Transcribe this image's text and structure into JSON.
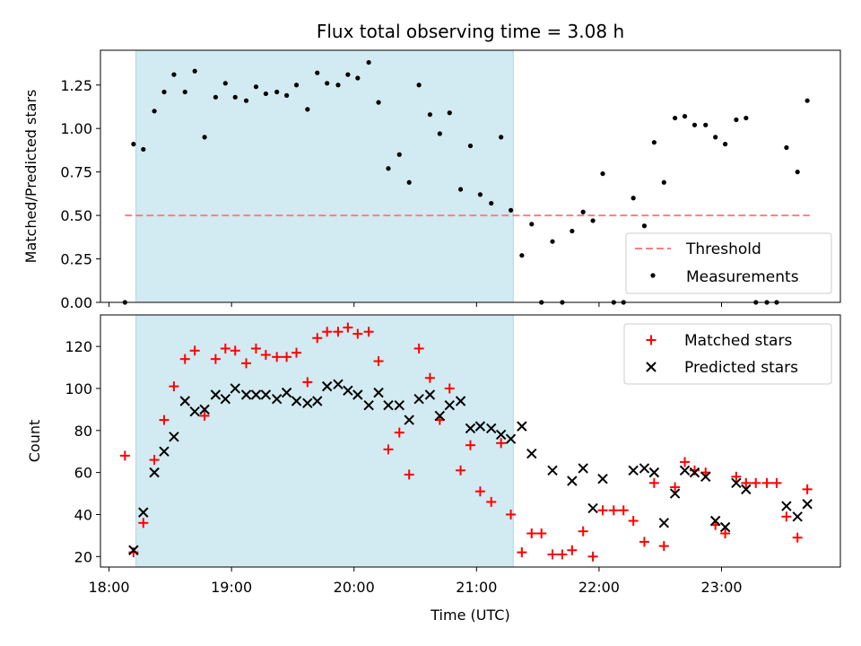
{
  "colors": {
    "shade": "#add8e6",
    "threshold": "#ff7f7f",
    "measurement": "#000000",
    "matched": "#ff0000",
    "predicted": "#000000"
  },
  "chart_data": [
    {
      "type": "scatter",
      "title": "Flux total observing time = 3.08 h",
      "xlabel": "",
      "ylabel": "Matched/Predicted stars",
      "ylim": [
        0.0,
        1.45
      ],
      "yticks": [
        0.0,
        0.25,
        0.5,
        0.75,
        1.0,
        1.25
      ],
      "ytick_labels": [
        "0.00",
        "0.25",
        "0.50",
        "0.75",
        "1.00",
        "1.25"
      ],
      "xlim_hours": [
        17.93,
        23.97
      ],
      "shaded_interval_hours": [
        18.22,
        21.3
      ],
      "threshold_value": 0.5,
      "threshold_span_hours": [
        18.13,
        23.72
      ],
      "legend": {
        "placement": "lower-right",
        "entries": [
          "Threshold",
          "Measurements"
        ]
      },
      "series": [
        {
          "name": "Measurements",
          "marker": "dot",
          "x_hours": [
            18.13,
            18.2,
            18.28,
            18.37,
            18.45,
            18.53,
            18.62,
            18.7,
            18.78,
            18.87,
            18.95,
            19.03,
            19.12,
            19.2,
            19.28,
            19.37,
            19.45,
            19.53,
            19.62,
            19.7,
            19.78,
            19.87,
            19.95,
            20.03,
            20.12,
            20.2,
            20.28,
            20.37,
            20.45,
            20.53,
            20.62,
            20.7,
            20.78,
            20.87,
            20.95,
            21.03,
            21.12,
            21.2,
            21.28,
            21.37,
            21.45,
            21.53,
            21.62,
            21.7,
            21.78,
            21.87,
            21.95,
            22.03,
            22.12,
            22.2,
            22.28,
            22.37,
            22.45,
            22.53,
            22.62,
            22.7,
            22.78,
            22.87,
            22.95,
            23.03,
            23.12,
            23.2,
            23.28,
            23.37,
            23.45,
            23.53,
            23.62,
            23.7
          ],
          "y": [
            0.0,
            0.91,
            0.88,
            1.1,
            1.21,
            1.31,
            1.21,
            1.33,
            0.95,
            1.18,
            1.26,
            1.18,
            1.16,
            1.24,
            1.2,
            1.21,
            1.19,
            1.25,
            1.11,
            1.32,
            1.26,
            1.25,
            1.31,
            1.29,
            1.38,
            1.15,
            0.77,
            0.85,
            0.69,
            1.25,
            1.08,
            0.97,
            1.09,
            0.65,
            0.9,
            0.62,
            0.57,
            0.95,
            0.53,
            0.27,
            0.45,
            0.0,
            0.35,
            0.0,
            0.41,
            0.52,
            0.47,
            0.74,
            0.0,
            0.0,
            0.6,
            0.44,
            0.92,
            0.69,
            1.06,
            1.07,
            1.02,
            1.02,
            0.95,
            0.91,
            1.05,
            1.06,
            0.0,
            0.0,
            0.0,
            0.89,
            0.75,
            1.16
          ]
        }
      ]
    },
    {
      "type": "scatter",
      "title": "",
      "xlabel": "Time (UTC)",
      "ylabel": "Count",
      "ylim": [
        15,
        135
      ],
      "yticks": [
        20,
        40,
        60,
        80,
        100,
        120
      ],
      "xlim_hours": [
        17.93,
        23.97
      ],
      "xticks_hours": [
        18,
        19,
        20,
        21,
        22,
        23
      ],
      "xtick_labels": [
        "18:00",
        "19:00",
        "20:00",
        "21:00",
        "22:00",
        "23:00"
      ],
      "shaded_interval_hours": [
        18.22,
        21.3
      ],
      "legend": {
        "placement": "top-right",
        "entries": [
          "Matched stars",
          "Predicted stars"
        ]
      },
      "series": [
        {
          "name": "Matched stars",
          "marker": "plus",
          "x_hours": [
            18.13,
            18.2,
            18.28,
            18.37,
            18.45,
            18.53,
            18.62,
            18.7,
            18.78,
            18.87,
            18.95,
            19.03,
            19.12,
            19.2,
            19.28,
            19.37,
            19.45,
            19.53,
            19.62,
            19.7,
            19.78,
            19.87,
            19.95,
            20.03,
            20.12,
            20.2,
            20.28,
            20.37,
            20.45,
            20.53,
            20.62,
            20.7,
            20.78,
            20.87,
            20.95,
            21.03,
            21.12,
            21.2,
            21.28,
            21.37,
            21.45,
            21.53,
            21.62,
            21.7,
            21.78,
            21.87,
            21.95,
            22.03,
            22.12,
            22.2,
            22.28,
            22.37,
            22.45,
            22.53,
            22.62,
            22.7,
            22.78,
            22.87,
            22.95,
            23.03,
            23.12,
            23.2,
            23.28,
            23.37,
            23.45,
            23.53,
            23.62,
            23.7
          ],
          "y": [
            68,
            22,
            36,
            66,
            85,
            101,
            114,
            118,
            87,
            114,
            119,
            118,
            112,
            119,
            116,
            115,
            115,
            117,
            103,
            124,
            127,
            127,
            129,
            126,
            127,
            113,
            71,
            79,
            59,
            119,
            105,
            85,
            100,
            61,
            73,
            51,
            46,
            74,
            40,
            22,
            31,
            31,
            21,
            21,
            23,
            32,
            20,
            42,
            42,
            42,
            37,
            27,
            55,
            25,
            53,
            65,
            61,
            60,
            35,
            31,
            58,
            55,
            55,
            55,
            55,
            39,
            29,
            52
          ]
        },
        {
          "name": "Predicted stars",
          "marker": "x",
          "x_hours": [
            18.2,
            18.28,
            18.37,
            18.45,
            18.53,
            18.62,
            18.7,
            18.78,
            18.87,
            18.95,
            19.03,
            19.12,
            19.2,
            19.28,
            19.37,
            19.45,
            19.53,
            19.62,
            19.7,
            19.78,
            19.87,
            19.95,
            20.03,
            20.12,
            20.2,
            20.28,
            20.37,
            20.45,
            20.53,
            20.62,
            20.7,
            20.78,
            20.87,
            20.95,
            21.03,
            21.12,
            21.2,
            21.28,
            21.37,
            21.45,
            21.62,
            21.78,
            21.87,
            21.95,
            22.03,
            22.28,
            22.37,
            22.45,
            22.53,
            22.62,
            22.7,
            22.78,
            22.87,
            22.95,
            23.03,
            23.12,
            23.2,
            23.53,
            23.62,
            23.7
          ],
          "y": [
            23,
            41,
            60,
            70,
            77,
            94,
            89,
            90,
            97,
            95,
            100,
            97,
            97,
            97,
            95,
            98,
            94,
            93,
            94,
            101,
            102,
            99,
            97,
            92,
            98,
            92,
            92,
            85,
            95,
            97,
            87,
            92,
            94,
            81,
            82,
            81,
            78,
            76,
            82,
            69,
            61,
            56,
            62,
            43,
            57,
            61,
            62,
            60,
            36,
            50,
            61,
            60,
            58,
            37,
            34,
            55,
            52,
            44,
            39,
            45
          ]
        }
      ]
    }
  ]
}
